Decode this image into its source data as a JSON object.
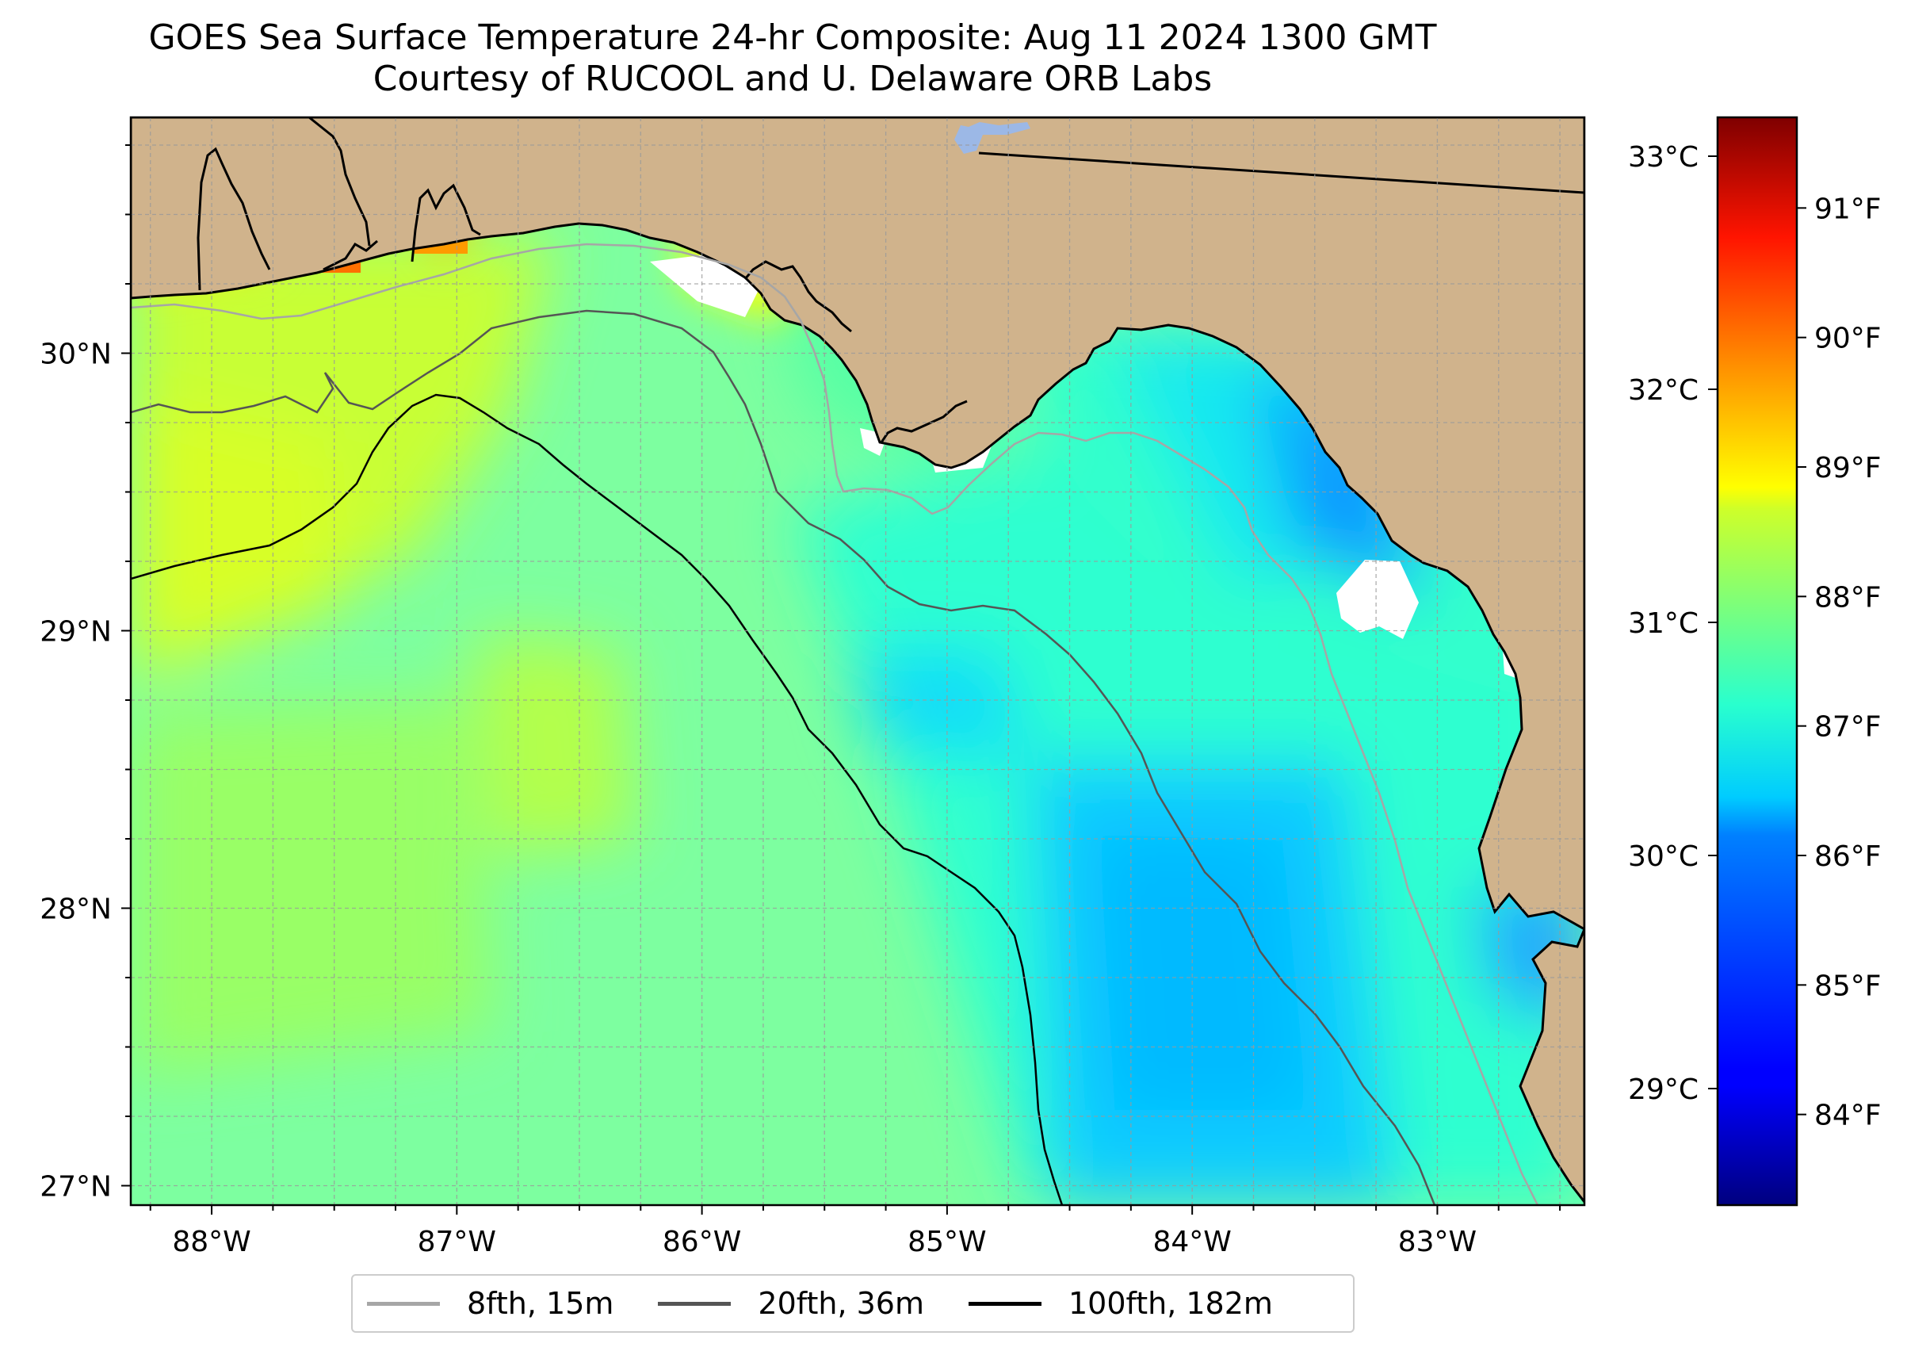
{
  "title": {
    "line1": "GOES Sea Surface Temperature 24-hr Composite: Aug 11 2024 1300 GMT",
    "line2": "Courtesy of RUCOOL and U. Delaware ORB Labs"
  },
  "map": {
    "extent": {
      "lon_min": -88.33,
      "lon_max": -82.4,
      "lat_min": 26.93,
      "lat_max": 30.85
    },
    "land_color": "#d0b38c",
    "lat_ticks": [
      {
        "value": 30,
        "label": "30°N"
      },
      {
        "value": 29,
        "label": "29°N"
      },
      {
        "value": 28,
        "label": "28°N"
      },
      {
        "value": 27,
        "label": "27°N"
      }
    ],
    "lon_ticks": [
      {
        "value": -88,
        "label": "88°W"
      },
      {
        "value": -87,
        "label": "87°W"
      },
      {
        "value": -86,
        "label": "86°W"
      },
      {
        "value": -85,
        "label": "85°W"
      },
      {
        "value": -84,
        "label": "84°W"
      },
      {
        "value": -83,
        "label": "83°W"
      }
    ],
    "grid_spacing_deg": 0.25,
    "isobaths": [
      {
        "label": "8fth, 15m",
        "color": "#a6a6a6"
      },
      {
        "label": "20fth, 36m",
        "color": "#555555"
      },
      {
        "label": "100fth, 182m",
        "color": "#000000"
      }
    ]
  },
  "colorbar": {
    "colormap": "jet",
    "celsius_ticks": [
      {
        "value": 33,
        "label": "33°C"
      },
      {
        "value": 32,
        "label": "32°C"
      },
      {
        "value": 31,
        "label": "31°C"
      },
      {
        "value": 30,
        "label": "30°C"
      },
      {
        "value": 29,
        "label": "29°C"
      }
    ],
    "fahrenheit_ticks": [
      {
        "value": 91,
        "label": "91°F"
      },
      {
        "value": 90,
        "label": "90°F"
      },
      {
        "value": 89,
        "label": "89°F"
      },
      {
        "value": 88,
        "label": "88°F"
      },
      {
        "value": 87,
        "label": "87°F"
      },
      {
        "value": 86,
        "label": "86°F"
      },
      {
        "value": 85,
        "label": "85°F"
      },
      {
        "value": 84,
        "label": "84°F"
      }
    ]
  }
}
